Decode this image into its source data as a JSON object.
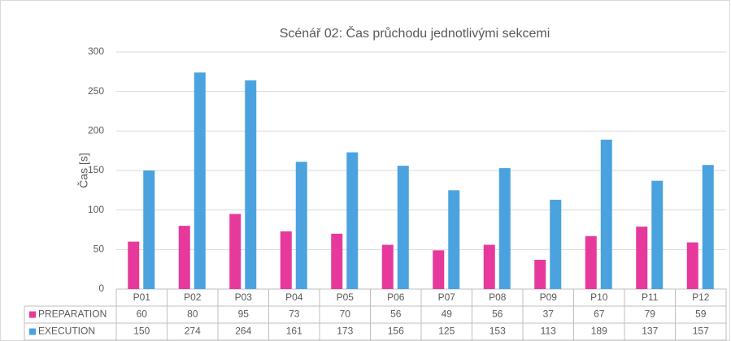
{
  "chart_data": {
    "type": "bar",
    "title": "Scénář 02: Čas průchodu jednotlivými sekcemi",
    "y_label": "Čas [s]",
    "categories": [
      "P01",
      "P02",
      "P03",
      "P04",
      "P05",
      "P06",
      "P07",
      "P08",
      "P09",
      "P10",
      "P11",
      "P12"
    ],
    "series": [
      {
        "name": "PREPARATION",
        "color": "#e6399b",
        "values": [
          60,
          80,
          95,
          73,
          70,
          56,
          49,
          56,
          37,
          67,
          79,
          59
        ]
      },
      {
        "name": "EXECUTION",
        "color": "#4aa3df",
        "values": [
          150,
          274,
          264,
          161,
          173,
          156,
          125,
          153,
          113,
          189,
          137,
          157
        ]
      }
    ],
    "ylim": [
      0,
      300
    ],
    "yticks": [
      0,
      50,
      100,
      150,
      200,
      250,
      300
    ],
    "grid": true,
    "legend": "data-table"
  }
}
